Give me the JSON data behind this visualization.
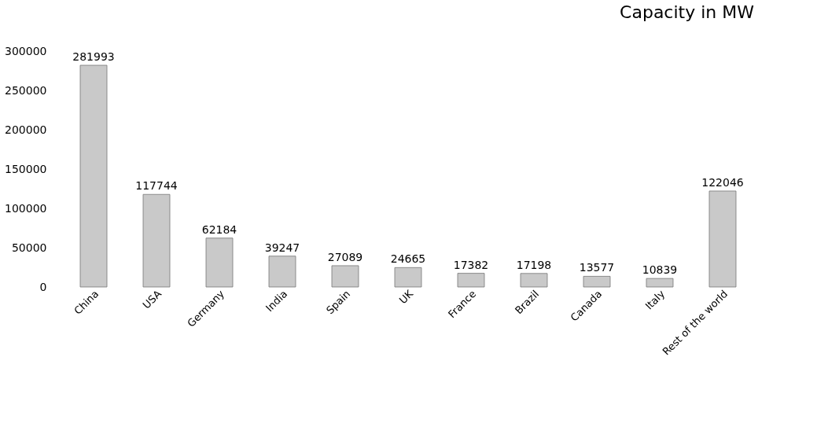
{
  "chart_data": {
    "type": "bar",
    "title": "Capacity in MW",
    "categories": [
      "China",
      "USA",
      "Germany",
      "India",
      "Spain",
      "UK",
      "France",
      "Brazil",
      "Canada",
      "Italy",
      "Rest of the world"
    ],
    "values": [
      281993,
      117744,
      62184,
      39247,
      27089,
      24665,
      17382,
      17198,
      13577,
      10839,
      122046
    ],
    "color": "#c9c9c9",
    "ylim": [
      0,
      300000
    ],
    "yticks": [
      0,
      50000,
      100000,
      150000,
      200000,
      250000,
      300000
    ],
    "grid": false,
    "data_labels": true
  }
}
